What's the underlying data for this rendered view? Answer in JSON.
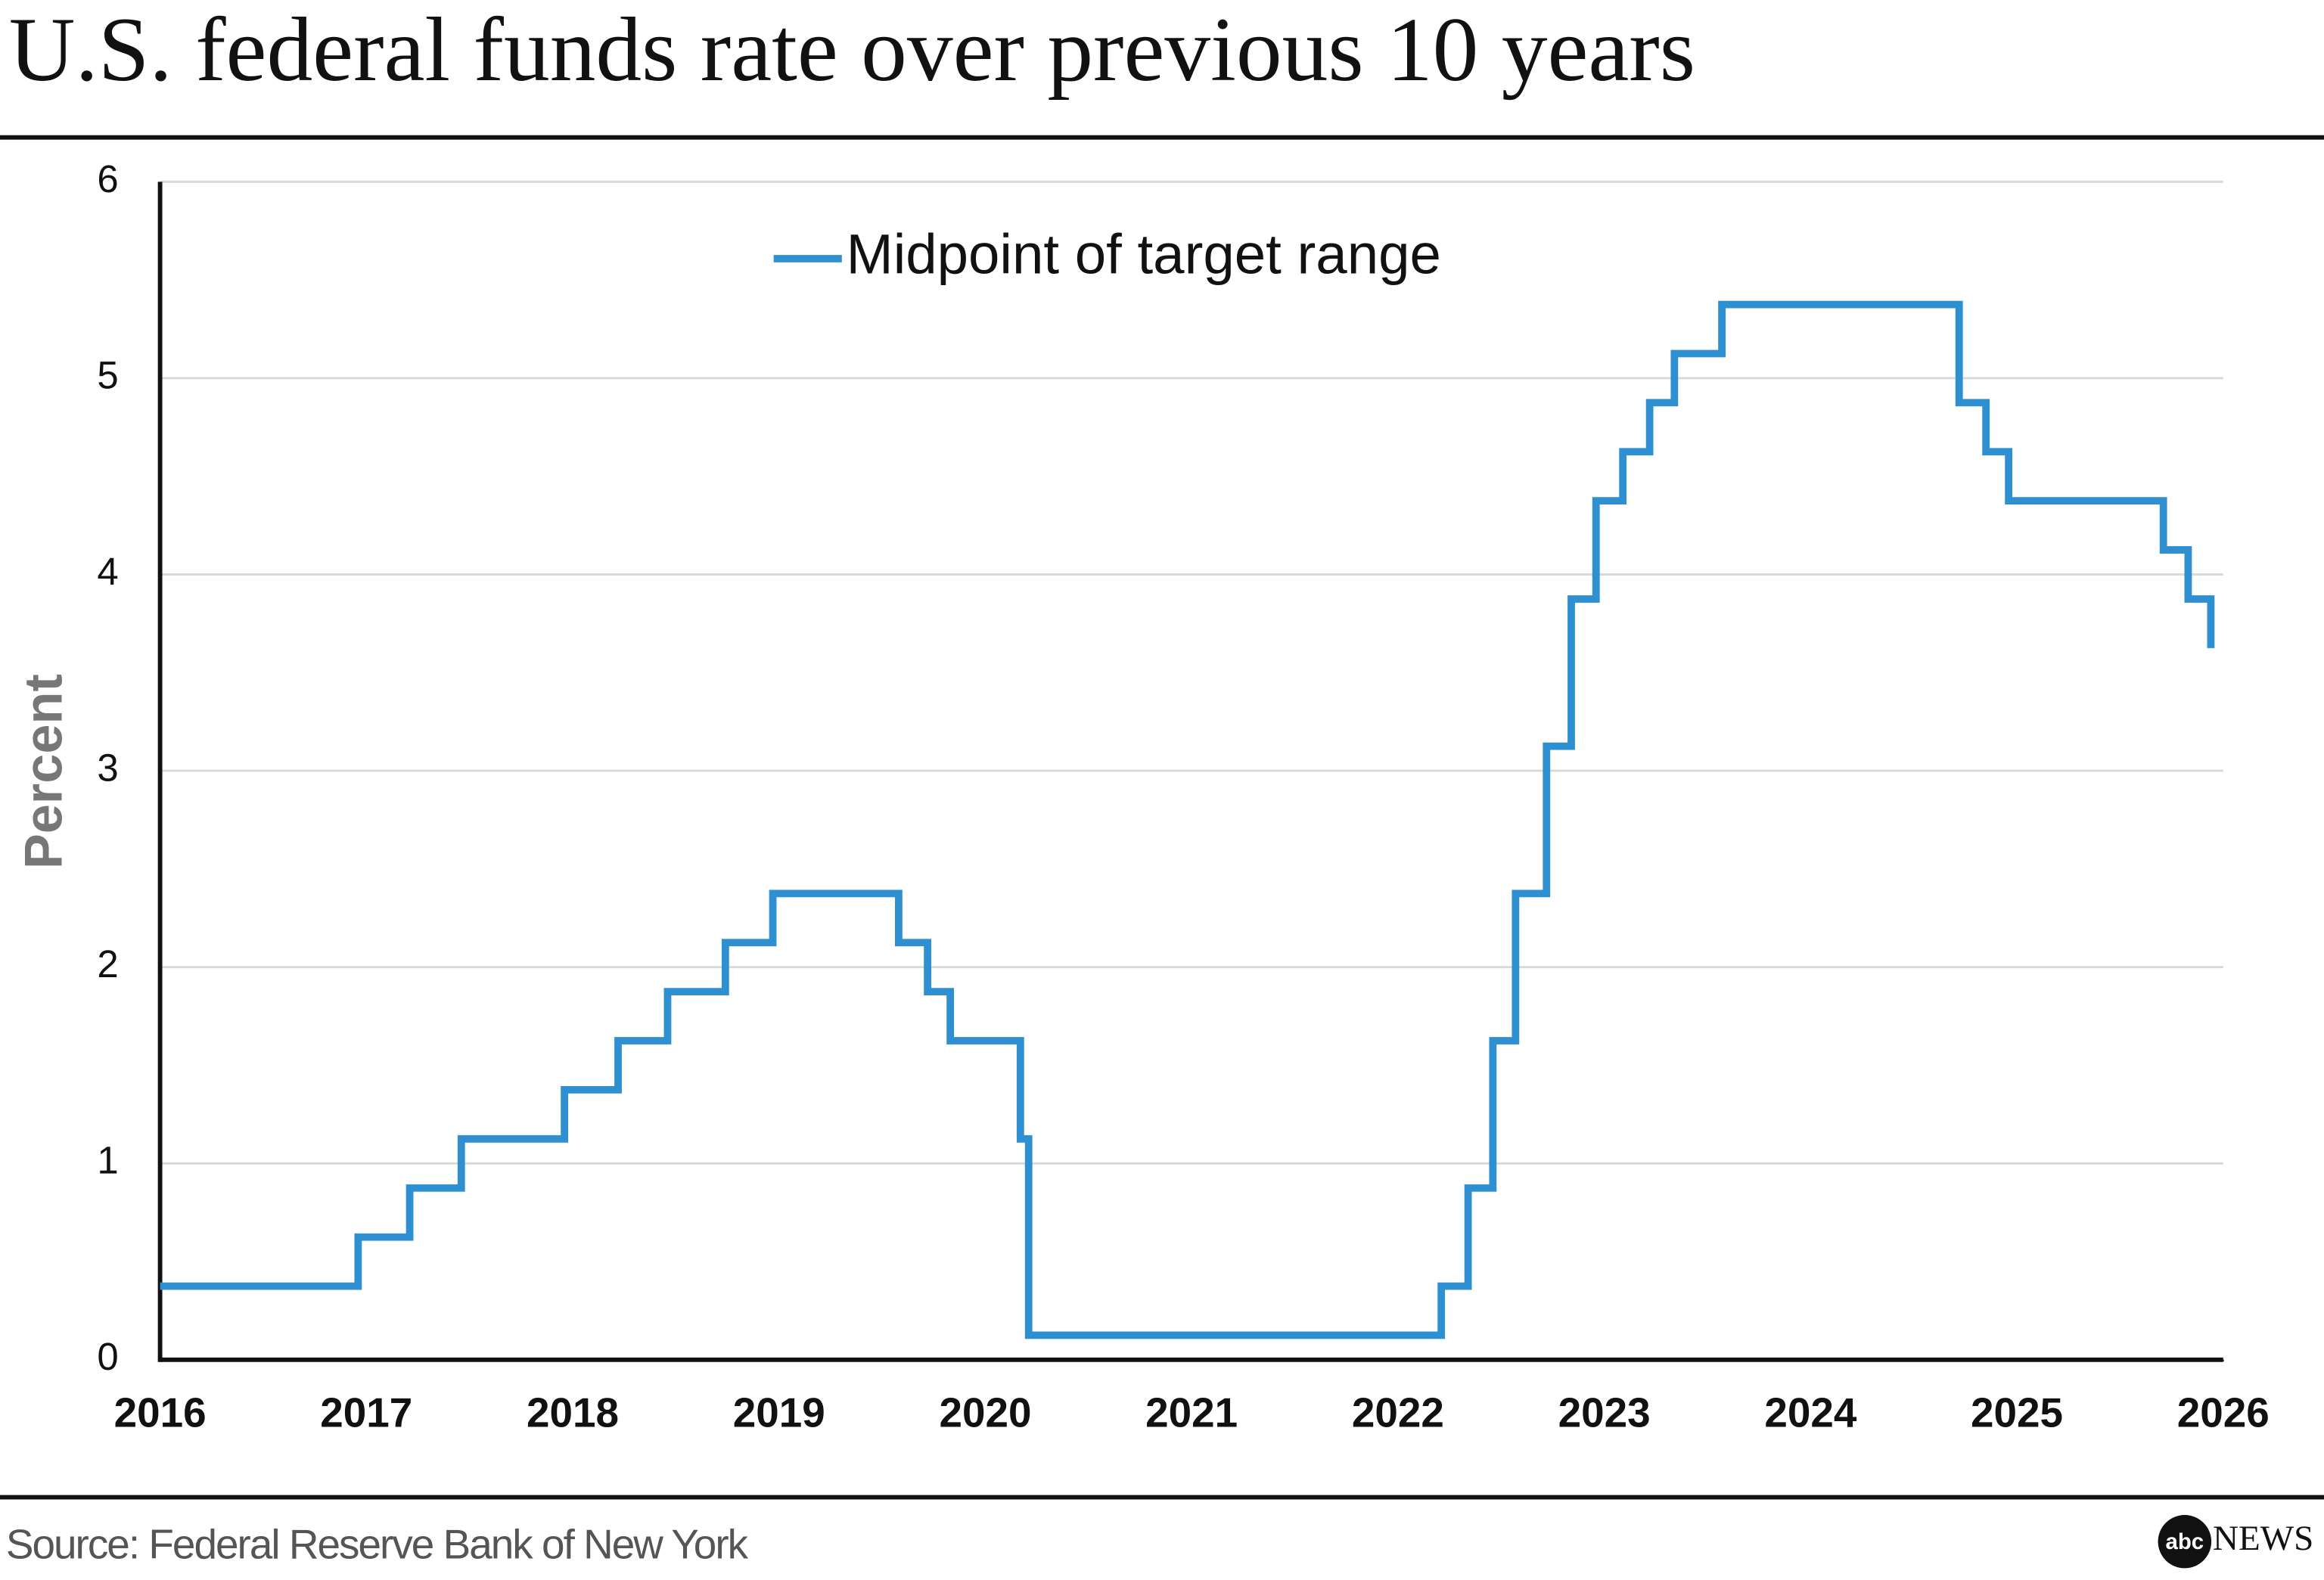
{
  "chart_data": {
    "type": "line",
    "title": "U.S. federal funds rate over previous 10 years",
    "y_label": "Percent",
    "source": "Source: Federal Reserve Bank of New York",
    "logo": {
      "mark": "abc",
      "word": "NEWS"
    },
    "xlim": [
      2016,
      2026
    ],
    "xticks": [
      2016,
      2017,
      2018,
      2019,
      2020,
      2021,
      2022,
      2023,
      2024,
      2025,
      2026
    ],
    "ylim": [
      0,
      6
    ],
    "yticks": [
      0,
      1,
      2,
      3,
      4,
      5,
      6
    ],
    "grid": true,
    "legend": "top",
    "series": [
      {
        "name": "Midpoint of target range",
        "color": "#2e8fd1",
        "x": [
          2016,
          2016.96,
          2016.96,
          2017.21,
          2017.21,
          2017.46,
          2017.46,
          2017.96,
          2017.96,
          2018.22,
          2018.22,
          2018.46,
          2018.46,
          2018.74,
          2018.74,
          2018.97,
          2018.97,
          2019.58,
          2019.58,
          2019.72,
          2019.72,
          2019.83,
          2019.83,
          2020.17,
          2020.17,
          2020.21,
          2020.21,
          2022.21,
          2022.21,
          2022.34,
          2022.34,
          2022.46,
          2022.46,
          2022.57,
          2022.57,
          2022.72,
          2022.72,
          2022.84,
          2022.84,
          2022.96,
          2022.96,
          2023.09,
          2023.09,
          2023.22,
          2023.22,
          2023.34,
          2023.34,
          2023.57,
          2023.57,
          2024.72,
          2024.72,
          2024.85,
          2024.85,
          2024.96,
          2024.96,
          2025.71,
          2025.71,
          2025.83,
          2025.83,
          2025.94,
          2025.94
        ],
        "values": [
          0.375,
          0.375,
          0.625,
          0.625,
          0.875,
          0.875,
          1.125,
          1.125,
          1.375,
          1.375,
          1.625,
          1.625,
          1.875,
          1.875,
          2.125,
          2.125,
          2.375,
          2.375,
          2.125,
          2.125,
          1.875,
          1.875,
          1.625,
          1.625,
          1.125,
          1.125,
          0.125,
          0.125,
          0.375,
          0.375,
          0.875,
          0.875,
          1.625,
          1.625,
          2.375,
          2.375,
          3.125,
          3.125,
          3.875,
          3.875,
          4.375,
          4.375,
          4.625,
          4.625,
          4.875,
          4.875,
          5.125,
          5.125,
          5.375,
          5.375,
          4.875,
          4.875,
          4.625,
          4.625,
          4.375,
          4.375,
          4.125,
          4.125,
          3.875,
          3.875,
          3.625
        ]
      }
    ]
  }
}
